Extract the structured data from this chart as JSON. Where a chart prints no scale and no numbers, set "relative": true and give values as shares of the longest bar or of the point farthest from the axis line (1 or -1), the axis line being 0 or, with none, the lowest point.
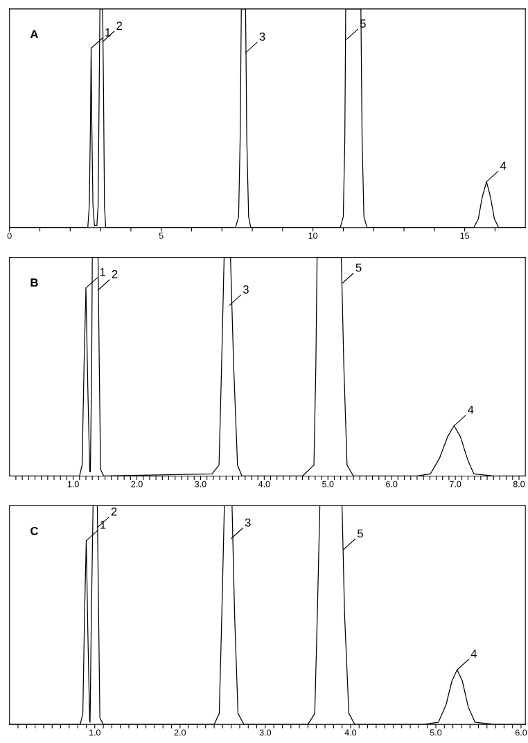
{
  "chart_data": [
    {
      "type": "line",
      "title": "A",
      "relative": true,
      "color": "#000000",
      "x": [
        0,
        2.58,
        2.63,
        2.67,
        2.69,
        2.71,
        2.75,
        2.8,
        2.88,
        2.92,
        2.96,
        2.98,
        3.07,
        3.1,
        3.13,
        3.17,
        7.45,
        7.55,
        7.6,
        7.64,
        7.78,
        7.82,
        7.88,
        7.95,
        10.9,
        11.0,
        11.05,
        11.08,
        11.58,
        11.62,
        11.68,
        11.78,
        15.3,
        15.45,
        15.58,
        15.72,
        15.85,
        15.98,
        16.12,
        17
      ],
      "values": [
        0,
        0,
        0.1,
        0.5,
        0.82,
        0.5,
        0.1,
        0.01,
        0.01,
        0.1,
        0.7,
        1,
        1,
        0.6,
        0.1,
        0,
        0,
        0.05,
        0.4,
        1,
        1,
        0.4,
        0.05,
        0,
        0,
        0.05,
        0.4,
        1,
        1,
        0.4,
        0.05,
        0,
        0,
        0.04,
        0.14,
        0.21,
        0.14,
        0.04,
        0,
        0
      ],
      "xlim": [
        0,
        17
      ],
      "xticks": [
        0,
        {
          "value": 1,
          "label": null
        },
        {
          "value": 2,
          "label": null
        },
        {
          "value": 3,
          "label": null
        },
        {
          "value": 4,
          "label": null
        },
        5,
        {
          "value": 6,
          "label": null
        },
        {
          "value": 7,
          "label": null
        },
        {
          "value": 8,
          "label": null
        },
        {
          "value": 9,
          "label": null
        },
        10,
        {
          "value": 11,
          "label": null
        },
        {
          "value": 12,
          "label": null
        },
        {
          "value": 13,
          "label": null
        },
        {
          "value": 14,
          "label": null
        },
        15,
        {
          "value": 16,
          "label": null
        }
      ],
      "annotations": [
        {
          "text": "1",
          "x": 2.69,
          "y": 0.82
        },
        {
          "text": "2",
          "x": 3.07,
          "y": 0.85
        },
        {
          "text": "3",
          "x": 7.78,
          "y": 0.8
        },
        {
          "text": "5",
          "x": 11.1,
          "y": 0.86
        },
        {
          "text": "4",
          "x": 15.72,
          "y": 0.21
        }
      ]
    },
    {
      "type": "line",
      "title": "B",
      "relative": true,
      "color": "#000000",
      "x": [
        0,
        1.1,
        1.14,
        1.17,
        1.2,
        1.23,
        1.26,
        1.27,
        1.29,
        1.3,
        1.39,
        1.41,
        1.43,
        1.48,
        3.18,
        3.29,
        3.33,
        3.37,
        3.47,
        3.52,
        3.58,
        3.65,
        4.6,
        4.78,
        4.81,
        4.83,
        5.21,
        5.25,
        5.3,
        5.4,
        6.4,
        6.61,
        6.75,
        6.88,
        6.98,
        7.08,
        7.2,
        7.29,
        7.6,
        8.1
      ],
      "values": [
        0,
        0,
        0.05,
        0.5,
        0.86,
        0.4,
        0.02,
        0.02,
        0.5,
        1,
        1,
        0.5,
        0.03,
        0,
        0.01,
        0.05,
        0.5,
        1,
        1,
        0.5,
        0.05,
        0,
        0,
        0.05,
        0.5,
        1,
        1,
        0.5,
        0.05,
        0,
        0,
        0.01,
        0.08,
        0.18,
        0.23,
        0.18,
        0.07,
        0.01,
        0,
        0
      ],
      "xlim": [
        0,
        8.1
      ],
      "xticks": [
        {
          "value": 0.1,
          "label": null
        },
        {
          "value": 0.2,
          "label": null
        },
        {
          "value": 0.3,
          "label": null
        },
        {
          "value": 0.4,
          "label": null
        },
        {
          "value": 0.5,
          "label": null
        },
        {
          "value": 0.6,
          "label": null
        },
        {
          "value": 0.7,
          "label": null
        },
        {
          "value": 0.8,
          "label": null
        },
        {
          "value": 0.9,
          "label": null
        },
        {
          "value": 1,
          "label": "1.0"
        },
        {
          "value": 1.1,
          "label": null
        },
        {
          "value": 1.2,
          "label": null
        },
        {
          "value": 1.3,
          "label": null
        },
        {
          "value": 1.4,
          "label": null
        },
        {
          "value": 1.5,
          "label": null
        },
        {
          "value": 1.6,
          "label": null
        },
        {
          "value": 1.7,
          "label": null
        },
        {
          "value": 1.8,
          "label": null
        },
        {
          "value": 1.9,
          "label": null
        },
        {
          "value": 2,
          "label": "2.0"
        },
        {
          "value": 2.1,
          "label": null
        },
        {
          "value": 2.2,
          "label": null
        },
        {
          "value": 2.3,
          "label": null
        },
        {
          "value": 2.4,
          "label": null
        },
        {
          "value": 2.5,
          "label": null
        },
        {
          "value": 2.6,
          "label": null
        },
        {
          "value": 2.7,
          "label": null
        },
        {
          "value": 2.8,
          "label": null
        },
        {
          "value": 2.9,
          "label": null
        },
        {
          "value": 3,
          "label": "3.0"
        },
        {
          "value": 3.1,
          "label": null
        },
        {
          "value": 3.2,
          "label": null
        },
        {
          "value": 3.3,
          "label": null
        },
        {
          "value": 3.4,
          "label": null
        },
        {
          "value": 3.5,
          "label": null
        },
        {
          "value": 3.6,
          "label": null
        },
        {
          "value": 3.7,
          "label": null
        },
        {
          "value": 3.8,
          "label": null
        },
        {
          "value": 3.9,
          "label": null
        },
        {
          "value": 4,
          "label": "4.0"
        },
        {
          "value": 4.1,
          "label": null
        },
        {
          "value": 4.2,
          "label": null
        },
        {
          "value": 4.3,
          "label": null
        },
        {
          "value": 4.4,
          "label": null
        },
        {
          "value": 4.5,
          "label": null
        },
        {
          "value": 4.6,
          "label": null
        },
        {
          "value": 4.7,
          "label": null
        },
        {
          "value": 4.8,
          "label": null
        },
        {
          "value": 4.9,
          "label": null
        },
        {
          "value": 5,
          "label": "5.0"
        },
        {
          "value": 5.1,
          "label": null
        },
        {
          "value": 5.2,
          "label": null
        },
        {
          "value": 5.3,
          "label": null
        },
        {
          "value": 5.4,
          "label": null
        },
        {
          "value": 5.5,
          "label": null
        },
        {
          "value": 5.6,
          "label": null
        },
        {
          "value": 5.7,
          "label": null
        },
        {
          "value": 5.8,
          "label": null
        },
        {
          "value": 5.9,
          "label": null
        },
        {
          "value": 6,
          "label": "6.0"
        },
        {
          "value": 6.1,
          "label": null
        },
        {
          "value": 6.2,
          "label": null
        },
        {
          "value": 6.3,
          "label": null
        },
        {
          "value": 6.4,
          "label": null
        },
        {
          "value": 6.5,
          "label": null
        },
        {
          "value": 6.6,
          "label": null
        },
        {
          "value": 6.7,
          "label": null
        },
        {
          "value": 6.8,
          "label": null
        },
        {
          "value": 6.9,
          "label": null
        },
        {
          "value": 7,
          "label": "7.0"
        },
        {
          "value": 7.1,
          "label": null
        },
        {
          "value": 7.2,
          "label": null
        },
        {
          "value": 7.3,
          "label": null
        },
        {
          "value": 7.4,
          "label": null
        },
        {
          "value": 7.5,
          "label": null
        },
        {
          "value": 7.6,
          "label": null
        },
        {
          "value": 7.7,
          "label": null
        },
        {
          "value": 7.8,
          "label": null
        },
        {
          "value": 7.9,
          "label": null
        },
        {
          "value": 8,
          "label": "8.0"
        }
      ],
      "annotations": [
        {
          "text": "1",
          "x": 1.2,
          "y": 0.86
        },
        {
          "text": "2",
          "x": 1.39,
          "y": 0.85
        },
        {
          "text": "3",
          "x": 3.45,
          "y": 0.78
        },
        {
          "text": "5",
          "x": 5.22,
          "y": 0.88
        },
        {
          "text": "4",
          "x": 6.98,
          "y": 0.23
        }
      ]
    },
    {
      "type": "line",
      "title": "C",
      "relative": true,
      "color": "#000000",
      "x": [
        0,
        0.83,
        0.86,
        0.88,
        0.9,
        0.92,
        0.94,
        0.945,
        0.96,
        0.98,
        1.03,
        1.045,
        1.06,
        1.1,
        2.4,
        2.46,
        2.49,
        2.52,
        2.61,
        2.64,
        2.68,
        2.75,
        3.5,
        3.58,
        3.61,
        3.64,
        3.9,
        3.93,
        3.98,
        4.05,
        4.85,
        5.03,
        5.12,
        5.19,
        5.25,
        5.31,
        5.38,
        5.46,
        5.7,
        6.05
      ],
      "values": [
        0,
        0,
        0.05,
        0.5,
        0.84,
        0.4,
        0.02,
        0.01,
        0.5,
        1,
        1,
        0.5,
        0.03,
        0,
        0,
        0.05,
        0.5,
        1,
        1,
        0.5,
        0.05,
        0,
        0,
        0.05,
        0.5,
        1,
        1,
        0.5,
        0.05,
        0,
        0,
        0.01,
        0.09,
        0.2,
        0.25,
        0.2,
        0.08,
        0.01,
        0,
        0
      ],
      "xlim": [
        0,
        6.05
      ],
      "xticks": [
        {
          "value": 0.1,
          "label": null
        },
        {
          "value": 0.2,
          "label": null
        },
        {
          "value": 0.3,
          "label": null
        },
        {
          "value": 0.4,
          "label": null
        },
        {
          "value": 0.5,
          "label": null
        },
        {
          "value": 0.6,
          "label": null
        },
        {
          "value": 0.7,
          "label": null
        },
        {
          "value": 0.8,
          "label": null
        },
        {
          "value": 0.9,
          "label": null
        },
        {
          "value": 1,
          "label": "1.0"
        },
        {
          "value": 1.1,
          "label": null
        },
        {
          "value": 1.2,
          "label": null
        },
        {
          "value": 1.3,
          "label": null
        },
        {
          "value": 1.4,
          "label": null
        },
        {
          "value": 1.5,
          "label": null
        },
        {
          "value": 1.6,
          "label": null
        },
        {
          "value": 1.7,
          "label": null
        },
        {
          "value": 1.8,
          "label": null
        },
        {
          "value": 1.9,
          "label": null
        },
        {
          "value": 2,
          "label": "2.0"
        },
        {
          "value": 2.1,
          "label": null
        },
        {
          "value": 2.2,
          "label": null
        },
        {
          "value": 2.3,
          "label": null
        },
        {
          "value": 2.4,
          "label": null
        },
        {
          "value": 2.5,
          "label": null
        },
        {
          "value": 2.6,
          "label": null
        },
        {
          "value": 2.7,
          "label": null
        },
        {
          "value": 2.8,
          "label": null
        },
        {
          "value": 2.9,
          "label": null
        },
        {
          "value": 3,
          "label": "3.0"
        },
        {
          "value": 3.1,
          "label": null
        },
        {
          "value": 3.2,
          "label": null
        },
        {
          "value": 3.3,
          "label": null
        },
        {
          "value": 3.4,
          "label": null
        },
        {
          "value": 3.5,
          "label": null
        },
        {
          "value": 3.6,
          "label": null
        },
        {
          "value": 3.7,
          "label": null
        },
        {
          "value": 3.8,
          "label": null
        },
        {
          "value": 3.9,
          "label": null
        },
        {
          "value": 4,
          "label": "4.0"
        },
        {
          "value": 4.1,
          "label": null
        },
        {
          "value": 4.2,
          "label": null
        },
        {
          "value": 4.3,
          "label": null
        },
        {
          "value": 4.4,
          "label": null
        },
        {
          "value": 4.5,
          "label": null
        },
        {
          "value": 4.6,
          "label": null
        },
        {
          "value": 4.7,
          "label": null
        },
        {
          "value": 4.8,
          "label": null
        },
        {
          "value": 4.9,
          "label": null
        },
        {
          "value": 5,
          "label": "5.0"
        },
        {
          "value": 5.1,
          "label": null
        },
        {
          "value": 5.2,
          "label": null
        },
        {
          "value": 5.3,
          "label": null
        },
        {
          "value": 5.4,
          "label": null
        },
        {
          "value": 5.5,
          "label": null
        },
        {
          "value": 5.6,
          "label": null
        },
        {
          "value": 5.7,
          "label": null
        },
        {
          "value": 5.8,
          "label": null
        },
        {
          "value": 5.9,
          "label": null
        },
        {
          "value": 6,
          "label": "6.0"
        }
      ],
      "annotations": [
        {
          "text": "1",
          "x": 0.9,
          "y": 0.84
        },
        {
          "text": "2",
          "x": 1.03,
          "y": 0.9
        },
        {
          "text": "3",
          "x": 2.6,
          "y": 0.85
        },
        {
          "text": "5",
          "x": 3.918,
          "y": 0.8
        },
        {
          "text": "4",
          "x": 5.25,
          "y": 0.25
        }
      ]
    }
  ]
}
